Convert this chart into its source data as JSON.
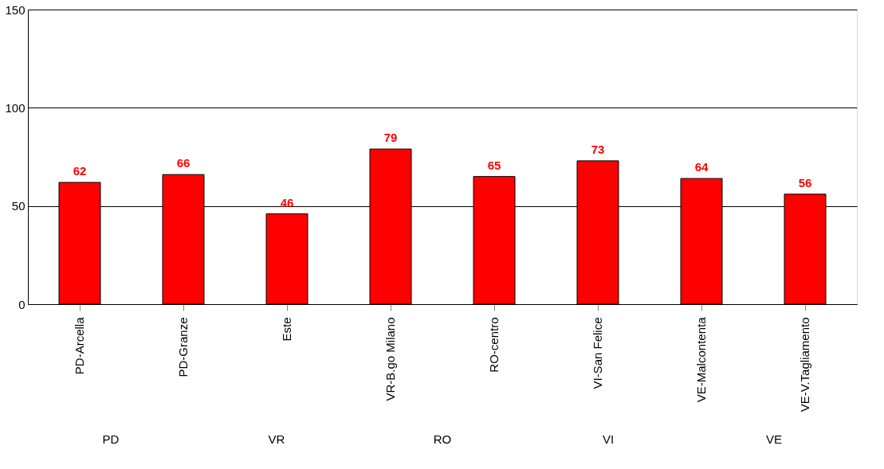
{
  "chart_data": {
    "type": "bar",
    "categories": [
      "PD-Arcella",
      "PD-Granze",
      "Este",
      "VR-B.go Milano",
      "RO-centro",
      "VI-San Felice",
      "VE-Malcontenta",
      "VE-V.Tagliamento"
    ],
    "values": [
      62,
      66,
      46,
      79,
      65,
      73,
      64,
      56
    ],
    "color": "#ff0000",
    "data_labels": true,
    "ylim": [
      0,
      150
    ],
    "yticks": [
      0,
      50,
      100,
      150
    ],
    "grid": "y",
    "annotations": [
      "PD",
      "VR",
      "RO",
      "VI",
      "VE"
    ]
  }
}
